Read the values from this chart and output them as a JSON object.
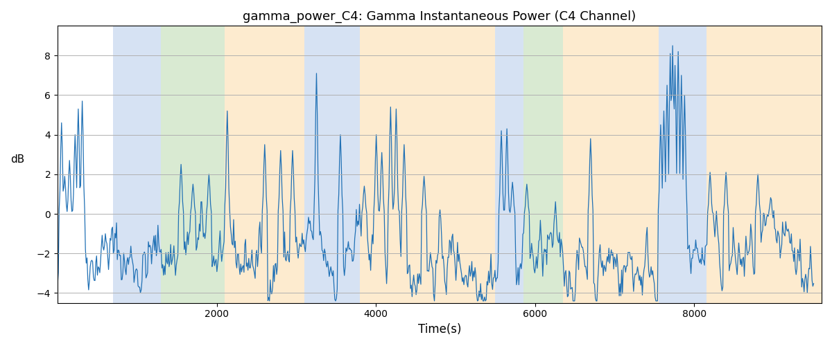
{
  "title": "gamma_power_C4: Gamma Instantaneous Power (C4 Channel)",
  "xlabel": "Time(s)",
  "ylabel": "dB",
  "xlim": [
    0,
    9600
  ],
  "ylim": [
    -4.5,
    9.5
  ],
  "yticks": [
    -4,
    -2,
    0,
    2,
    4,
    6,
    8
  ],
  "xticks": [
    2000,
    4000,
    6000,
    8000
  ],
  "line_color": "#2171b5",
  "line_width": 0.9,
  "grid_color": "#b0b0b0",
  "bands": [
    {
      "xmin": 700,
      "xmax": 1300,
      "color": "#aec6e8",
      "alpha": 0.5
    },
    {
      "xmin": 1300,
      "xmax": 2100,
      "color": "#b5d6a7",
      "alpha": 0.5
    },
    {
      "xmin": 2100,
      "xmax": 3100,
      "color": "#fdd9a0",
      "alpha": 0.5
    },
    {
      "xmin": 3100,
      "xmax": 3800,
      "color": "#aec6e8",
      "alpha": 0.5
    },
    {
      "xmin": 3800,
      "xmax": 5500,
      "color": "#fdd9a0",
      "alpha": 0.5
    },
    {
      "xmin": 5500,
      "xmax": 5850,
      "color": "#aec6e8",
      "alpha": 0.5
    },
    {
      "xmin": 5850,
      "xmax": 6350,
      "color": "#b5d6a7",
      "alpha": 0.5
    },
    {
      "xmin": 6350,
      "xmax": 7550,
      "color": "#fdd9a0",
      "alpha": 0.5
    },
    {
      "xmin": 7550,
      "xmax": 8150,
      "color": "#aec6e8",
      "alpha": 0.5
    },
    {
      "xmin": 8150,
      "xmax": 9600,
      "color": "#fdd9a0",
      "alpha": 0.5
    }
  ],
  "n_points": 950,
  "seed": 42,
  "figsize": [
    12,
    5
  ],
  "dpi": 100
}
